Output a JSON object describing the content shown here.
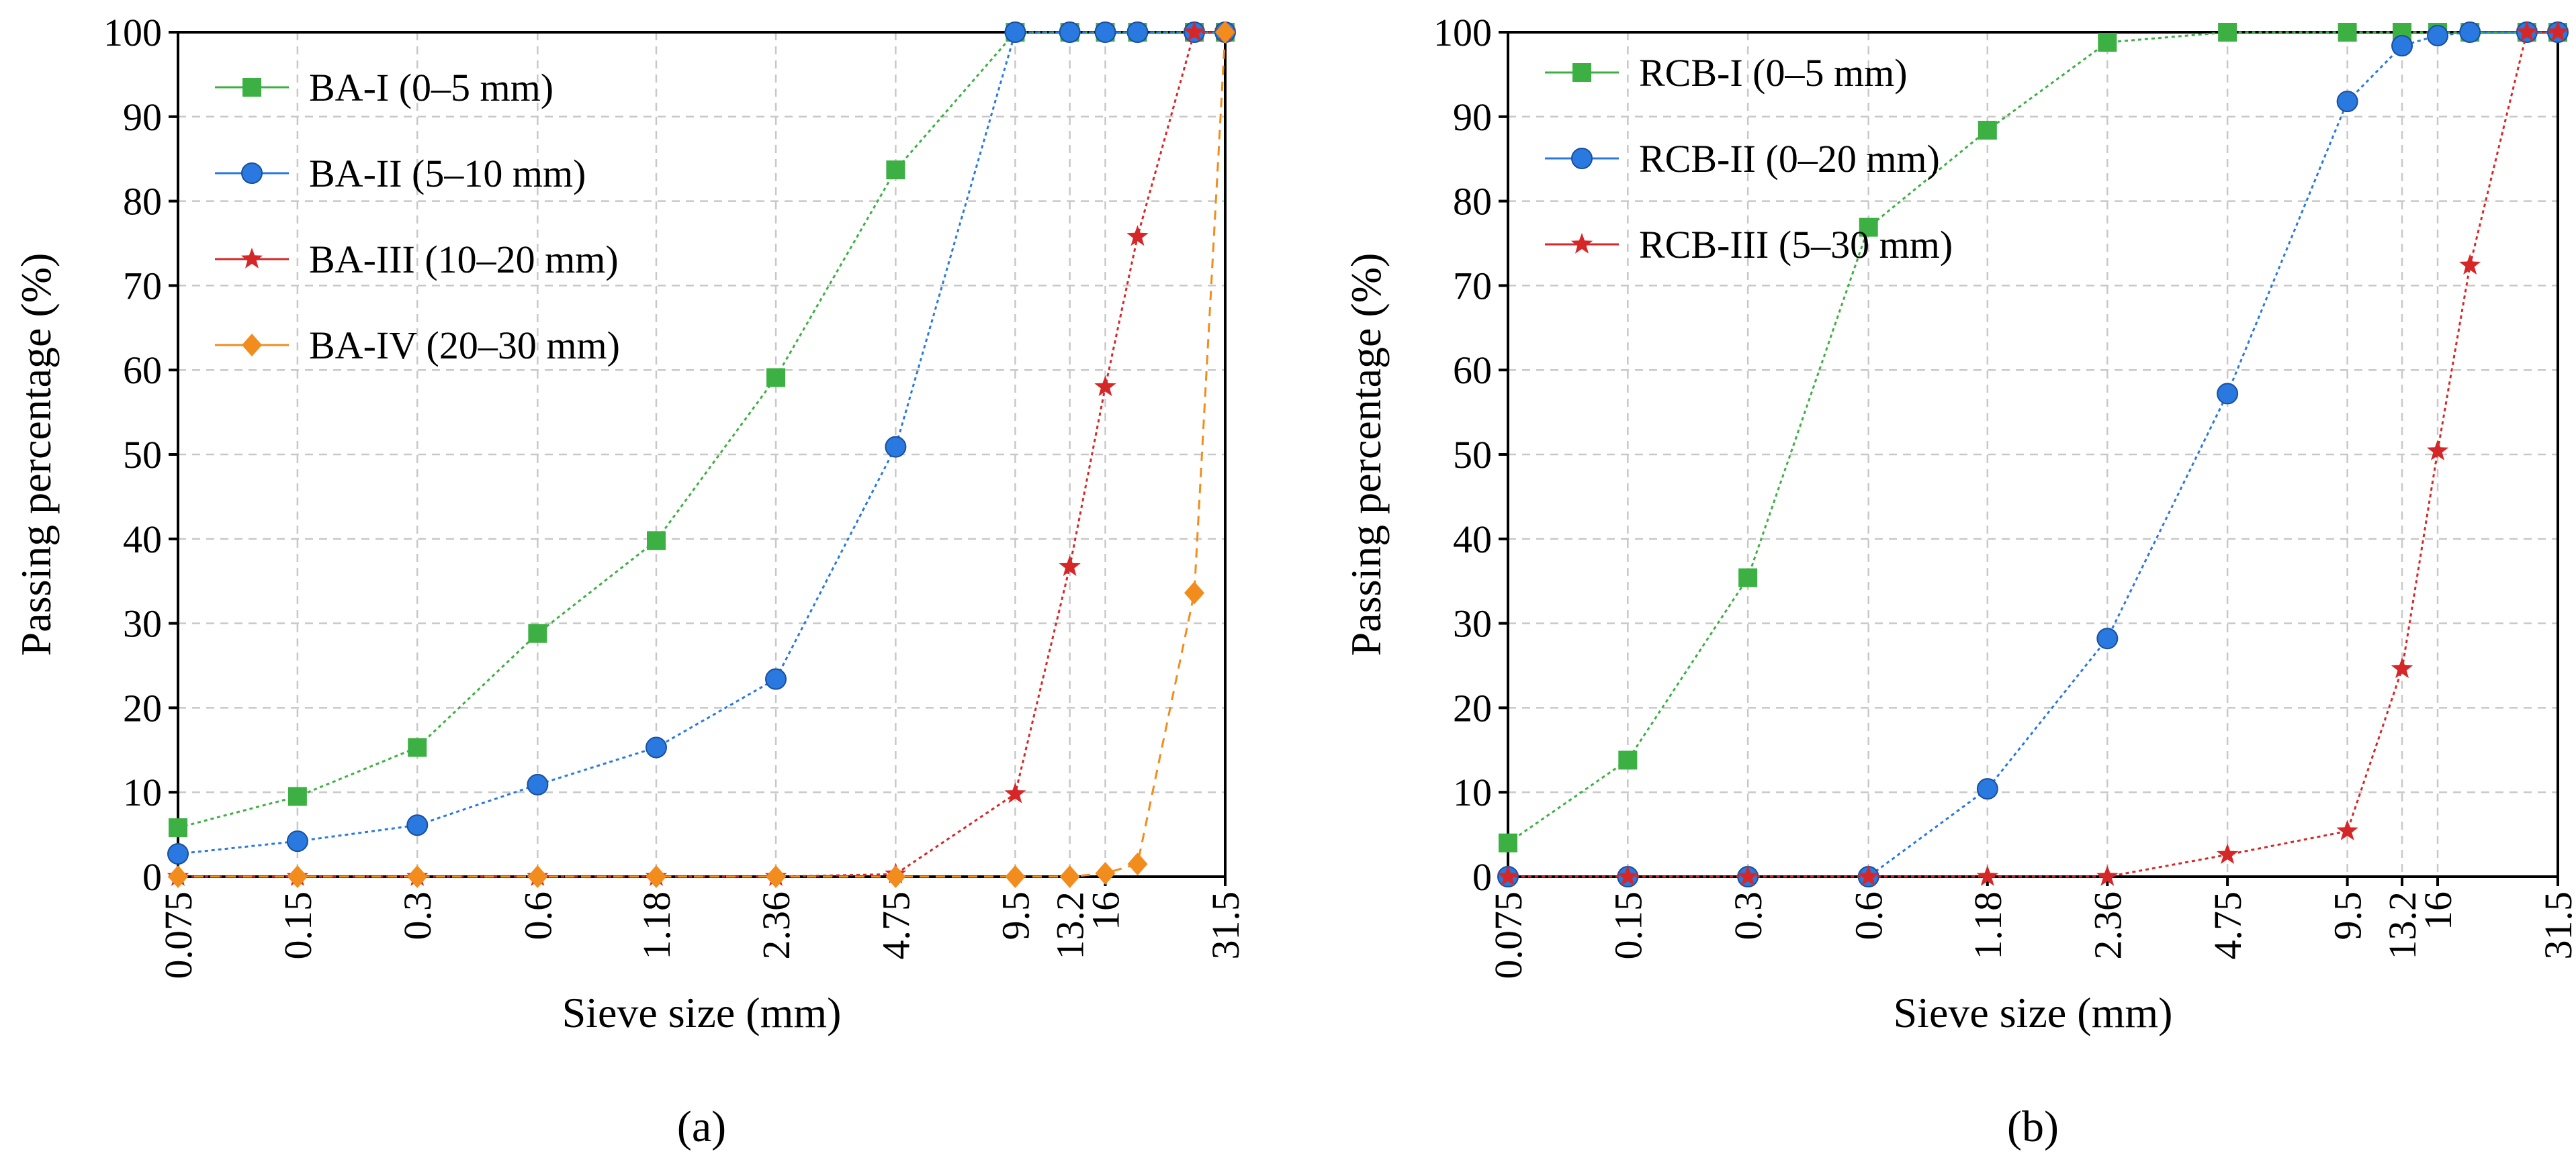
{
  "chart_data": [
    {
      "type": "line",
      "panel_label": "(a)",
      "xlabel": "Sieve size (mm)",
      "ylabel": "Passing percentage (%)",
      "x_ticks": [
        "0.075",
        "0.15",
        "0.3",
        "0.6",
        "1.18",
        "2.36",
        "4.75",
        "9.5",
        "13.2",
        "16",
        "31.5"
      ],
      "ylim": [
        0,
        100
      ],
      "y_ticks": [
        0,
        10,
        20,
        30,
        40,
        50,
        60,
        70,
        80,
        90,
        100
      ],
      "grid": true,
      "legend_position": "top-left",
      "series": [
        {
          "name": "BA-I (0–5 mm)",
          "color": "#3cb043",
          "marker": "square",
          "line_style": "dotted",
          "x": [
            0.075,
            0.15,
            0.3,
            0.6,
            1.18,
            2.36,
            4.75,
            9.5,
            13.2,
            16,
            19,
            26.5,
            31.5
          ],
          "values": [
            5.8,
            9.5,
            15.3,
            28.8,
            39.8,
            59.1,
            83.7,
            100,
            100,
            100,
            100,
            100,
            100
          ]
        },
        {
          "name": "BA-II (5–10 mm)",
          "color": "#2979e0",
          "marker": "circle",
          "line_style": "dotted",
          "x": [
            0.075,
            0.15,
            0.3,
            0.6,
            1.18,
            2.36,
            4.75,
            9.5,
            13.2,
            16,
            19,
            26.5,
            31.5
          ],
          "values": [
            2.7,
            4.2,
            6.1,
            10.9,
            15.3,
            23.4,
            50.9,
            100,
            100,
            100,
            100,
            100,
            100
          ]
        },
        {
          "name": "BA-III (10–20 mm)",
          "color": "#d62728",
          "marker": "star",
          "line_style": "dotted",
          "x": [
            0.075,
            0.15,
            0.3,
            0.6,
            1.18,
            2.36,
            4.75,
            9.5,
            13.2,
            16,
            19,
            26.5,
            31.5
          ],
          "values": [
            0,
            0,
            0,
            0,
            0,
            0,
            0.3,
            9.8,
            36.7,
            58,
            75.8,
            100,
            100
          ]
        },
        {
          "name": "BA-IV (20–30 mm)",
          "color": "#f28c1c",
          "marker": "diamond",
          "line_style": "dashed",
          "x": [
            0.075,
            0.15,
            0.3,
            0.6,
            1.18,
            2.36,
            4.75,
            9.5,
            13.2,
            16,
            19,
            26.5,
            31.5
          ],
          "values": [
            0,
            0,
            0,
            0,
            0,
            0,
            0,
            0,
            0,
            0.4,
            1.5,
            33.6,
            100
          ]
        }
      ]
    },
    {
      "type": "line",
      "panel_label": "(b)",
      "xlabel": "Sieve size (mm)",
      "ylabel": "Passing percentage (%)",
      "x_ticks": [
        "0.075",
        "0.15",
        "0.3",
        "0.6",
        "1.18",
        "2.36",
        "4.75",
        "9.5",
        "13.2",
        "16",
        "31.5"
      ],
      "ylim": [
        0,
        100
      ],
      "y_ticks": [
        0,
        10,
        20,
        30,
        40,
        50,
        60,
        70,
        80,
        90,
        100
      ],
      "grid": true,
      "legend_position": "top-left",
      "series": [
        {
          "name": "RCB-I (0–5 mm)",
          "color": "#3cb043",
          "marker": "square",
          "line_style": "dotted",
          "x": [
            0.075,
            0.15,
            0.3,
            0.6,
            1.18,
            2.36,
            4.75,
            9.5,
            13.2,
            16,
            19,
            26.5,
            31.5
          ],
          "values": [
            4,
            13.8,
            35.4,
            76.9,
            88.4,
            98.8,
            100,
            100,
            100,
            100,
            100,
            100,
            100
          ]
        },
        {
          "name": "RCB-II (0–20 mm)",
          "color": "#2979e0",
          "marker": "circle",
          "line_style": "dotted",
          "x": [
            0.075,
            0.15,
            0.3,
            0.6,
            1.18,
            2.36,
            4.75,
            9.5,
            13.2,
            16,
            19,
            26.5,
            31.5
          ],
          "values": [
            0,
            0,
            0,
            0,
            10.4,
            28.2,
            57.2,
            91.8,
            98.4,
            99.6,
            100,
            100,
            100
          ]
        },
        {
          "name": "RCB-III (5–30 mm)",
          "color": "#d62728",
          "marker": "star",
          "line_style": "dotted",
          "x": [
            0.075,
            0.15,
            0.3,
            0.6,
            1.18,
            2.36,
            4.75,
            9.5,
            13.2,
            16,
            19,
            26.5,
            31.5
          ],
          "values": [
            0,
            0,
            0,
            0,
            0,
            0,
            2.6,
            5.4,
            24.6,
            50.4,
            72.4,
            100,
            100
          ]
        }
      ]
    }
  ]
}
